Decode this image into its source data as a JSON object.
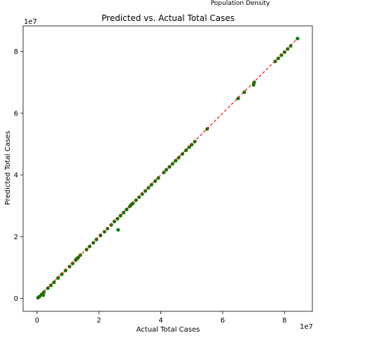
{
  "clipped_text": "Population Density",
  "chart_data": {
    "type": "scatter",
    "title": "Predicted vs. Actual Total Cases",
    "xlabel": "Actual Total Cases",
    "ylabel": "Predicted Total Cases",
    "x_multiplier": "1e7",
    "y_multiplier": "1e7",
    "xlim": [
      -0.45,
      8.9
    ],
    "ylim": [
      -0.42,
      8.83
    ],
    "xticks": [
      0,
      2,
      4,
      6,
      8
    ],
    "yticks": [
      0,
      2,
      4,
      6,
      8
    ],
    "grid": false,
    "point_color": "#008000",
    "line_color": "#ff0000",
    "reference_line": {
      "style": "dashed",
      "from": [
        0,
        0
      ],
      "to": [
        8.4,
        8.4
      ]
    },
    "points": [
      [
        0.03,
        0.02
      ],
      [
        0.08,
        0.06
      ],
      [
        0.15,
        0.13
      ],
      [
        0.22,
        0.2
      ],
      [
        0.35,
        0.33
      ],
      [
        0.45,
        0.42
      ],
      [
        0.55,
        0.52
      ],
      [
        0.68,
        0.66
      ],
      [
        0.8,
        0.78
      ],
      [
        0.92,
        0.9
      ],
      [
        1.05,
        1.03
      ],
      [
        1.15,
        1.13
      ],
      [
        1.25,
        1.24
      ],
      [
        1.33,
        1.32
      ],
      [
        1.4,
        1.4
      ],
      [
        1.6,
        1.58
      ],
      [
        1.7,
        1.68
      ],
      [
        1.82,
        1.8
      ],
      [
        1.92,
        1.91
      ],
      [
        2.05,
        2.04
      ],
      [
        2.18,
        2.16
      ],
      [
        2.28,
        2.26
      ],
      [
        2.4,
        2.38
      ],
      [
        2.5,
        2.49
      ],
      [
        2.6,
        2.58
      ],
      [
        2.7,
        2.68
      ],
      [
        2.8,
        2.78
      ],
      [
        2.9,
        2.88
      ],
      [
        3.0,
        2.98
      ],
      [
        3.1,
        3.08
      ],
      [
        3.2,
        3.18
      ],
      [
        3.3,
        3.28
      ],
      [
        3.4,
        3.38
      ],
      [
        3.5,
        3.48
      ],
      [
        3.6,
        3.58
      ],
      [
        3.7,
        3.68
      ],
      [
        3.82,
        3.8
      ],
      [
        3.92,
        3.9
      ],
      [
        4.1,
        4.08
      ],
      [
        4.18,
        4.17
      ],
      [
        4.28,
        4.26
      ],
      [
        4.38,
        4.36
      ],
      [
        4.48,
        4.46
      ],
      [
        4.58,
        4.56
      ],
      [
        4.7,
        4.68
      ],
      [
        4.82,
        4.8
      ],
      [
        4.92,
        4.9
      ],
      [
        5.0,
        4.98
      ],
      [
        5.1,
        5.08
      ],
      [
        5.5,
        5.49
      ],
      [
        6.5,
        6.48
      ],
      [
        6.7,
        6.68
      ],
      [
        7.0,
        6.92
      ],
      [
        7.02,
        7.0
      ],
      [
        7.7,
        7.68
      ],
      [
        7.8,
        7.78
      ],
      [
        7.9,
        7.88
      ],
      [
        8.0,
        7.98
      ],
      [
        8.1,
        8.08
      ],
      [
        8.2,
        8.18
      ],
      [
        8.42,
        8.42
      ],
      [
        2.62,
        2.22
      ],
      [
        0.2,
        0.1
      ],
      [
        1.28,
        1.28
      ],
      [
        3.05,
        3.04
      ]
    ]
  }
}
